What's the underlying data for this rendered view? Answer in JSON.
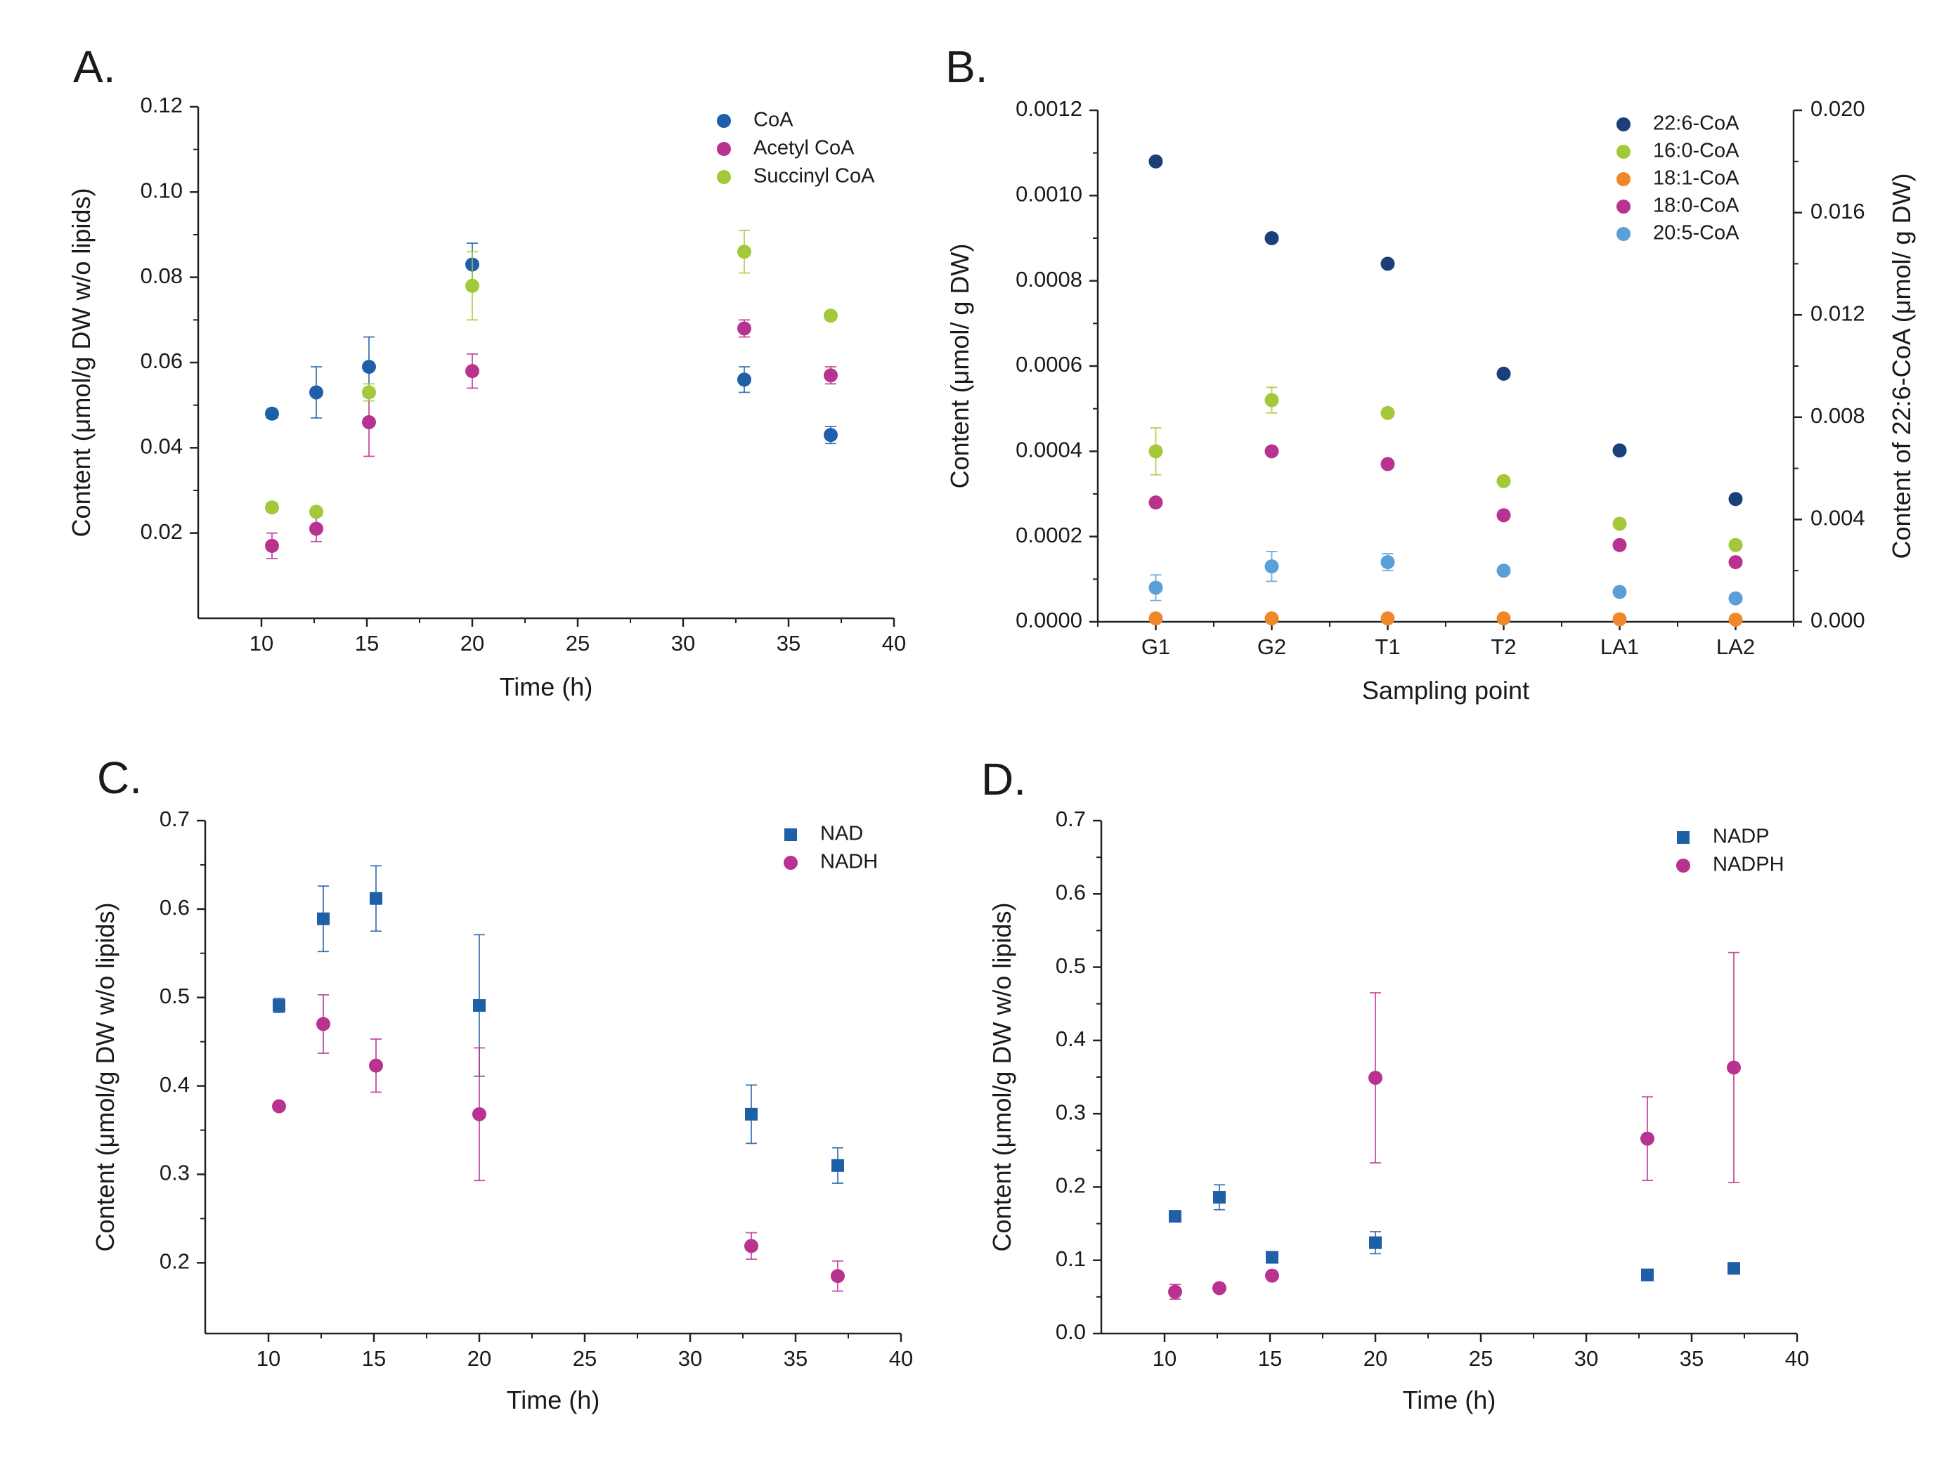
{
  "chart_data": [
    {
      "panel": "A.",
      "type": "scatter",
      "xlabel": "Time (h)",
      "ylabel": "Content (μmol/g DW w/o lipids)",
      "xlim": [
        7,
        40
      ],
      "ylim": [
        0,
        0.12
      ],
      "xticks": [
        10,
        15,
        20,
        25,
        30,
        35,
        40
      ],
      "yticks": [
        0.02,
        0.04,
        0.06,
        0.08,
        0.1,
        0.12
      ],
      "ytick_labels": [
        "0.02",
        "0.04",
        "0.06",
        "0.08",
        "0.10",
        "0.12"
      ],
      "legend_position": "top-right",
      "series": [
        {
          "name": "CoA",
          "color": "#1f5fa8",
          "marker": "circle",
          "x": [
            10.5,
            12.6,
            15.1,
            20.0,
            32.9,
            37.0
          ],
          "y": [
            0.048,
            0.053,
            0.059,
            0.083,
            0.056,
            0.043
          ],
          "err": [
            0.001,
            0.006,
            0.007,
            0.005,
            0.003,
            0.002
          ]
        },
        {
          "name": "Acetyl CoA",
          "color": "#b8338f",
          "marker": "circle",
          "x": [
            10.5,
            12.6,
            15.1,
            20.0,
            32.9,
            37.0
          ],
          "y": [
            0.017,
            0.021,
            0.046,
            0.058,
            0.068,
            0.057
          ],
          "err": [
            0.003,
            0.003,
            0.008,
            0.004,
            0.002,
            0.002
          ]
        },
        {
          "name": "Succinyl CoA",
          "color": "#a3c93a",
          "marker": "circle",
          "x": [
            10.5,
            12.6,
            15.1,
            20.0,
            32.9,
            37.0
          ],
          "y": [
            0.026,
            0.025,
            0.053,
            0.078,
            0.086,
            0.071
          ],
          "err": [
            0.001,
            0.001,
            0.002,
            0.008,
            0.005,
            0.001
          ]
        }
      ]
    },
    {
      "panel": "B.",
      "type": "scatter",
      "xlabel": "Sampling point",
      "ylabel": "Content (μmol/ g DW)",
      "y2label": "Content of 22:6-CoA (μmol/ g DW)",
      "categories": [
        "G1",
        "G2",
        "T1",
        "T2",
        "LA1",
        "LA2"
      ],
      "ylim": [
        0,
        0.0012
      ],
      "yticks": [
        0,
        0.0002,
        0.0004,
        0.0006,
        0.0008,
        0.001,
        0.0012
      ],
      "ytick_labels": [
        "0.0000",
        "0.0002",
        "0.0004",
        "0.0006",
        "0.0008",
        "0.0010",
        "0.0012"
      ],
      "y2lim": [
        0,
        0.02
      ],
      "y2ticks": [
        0,
        0.004,
        0.008,
        0.012,
        0.016,
        0.02
      ],
      "y2tick_labels": [
        "0.000",
        "0.004",
        "0.008",
        "0.012",
        "0.016",
        "0.020"
      ],
      "legend_position": "top-right",
      "series": [
        {
          "name": "22:6-CoA",
          "color": "#1a3f7a",
          "marker": "circle",
          "axis": "right",
          "values": [
            0.018,
            0.015,
            0.014,
            0.0097,
            0.0067,
            0.0048
          ],
          "err": [
            0,
            0,
            0,
            0,
            0,
            0
          ]
        },
        {
          "name": "16:0-CoA",
          "color": "#a3c93a",
          "marker": "circle",
          "axis": "left",
          "values": [
            0.0004,
            0.00052,
            0.00049,
            0.00033,
            0.00023,
            0.00018
          ],
          "err": [
            5.5e-05,
            3e-05,
            8e-06,
            5e-06,
            5e-06,
            5e-06
          ]
        },
        {
          "name": "18:1-CoA",
          "color": "#f0882a",
          "marker": "circle",
          "axis": "left",
          "values": [
            8e-06,
            8e-06,
            8e-06,
            8e-06,
            6e-06,
            5e-06
          ],
          "err": [
            0,
            0,
            0,
            0,
            0,
            0
          ]
        },
        {
          "name": "18:0-CoA",
          "color": "#b8338f",
          "marker": "circle",
          "axis": "left",
          "values": [
            0.00028,
            0.0004,
            0.00037,
            0.00025,
            0.00018,
            0.00014
          ],
          "err": [
            0,
            8e-06,
            5e-06,
            5e-06,
            5e-06,
            5e-06
          ]
        },
        {
          "name": "20:5-CoA",
          "color": "#5a9fd8",
          "marker": "circle",
          "axis": "left",
          "values": [
            8e-05,
            0.00013,
            0.00014,
            0.00012,
            7e-05,
            5.5e-05
          ],
          "err": [
            3e-05,
            3.5e-05,
            2e-05,
            5e-06,
            5e-06,
            5e-06
          ]
        }
      ]
    },
    {
      "panel": "C.",
      "type": "scatter",
      "xlabel": "Time (h)",
      "ylabel": "Content (μmol/g DW w/o lipids)",
      "xlim": [
        7,
        40
      ],
      "ylim": [
        0.12,
        0.7
      ],
      "xticks": [
        10,
        15,
        20,
        25,
        30,
        35,
        40
      ],
      "yticks": [
        0.2,
        0.3,
        0.4,
        0.5,
        0.6,
        0.7
      ],
      "ytick_labels": [
        "0.2",
        "0.3",
        "0.4",
        "0.5",
        "0.6",
        "0.7"
      ],
      "legend_position": "top-right",
      "series": [
        {
          "name": "NAD",
          "color": "#1f5fa8",
          "marker": "square",
          "x": [
            10.5,
            12.6,
            15.1,
            20.0,
            32.9,
            37.0
          ],
          "y": [
            0.491,
            0.589,
            0.612,
            0.491,
            0.368,
            0.31
          ],
          "err": [
            0.008,
            0.037,
            0.037,
            0.08,
            0.033,
            0.02
          ]
        },
        {
          "name": "NADH",
          "color": "#b8338f",
          "marker": "circle",
          "x": [
            10.5,
            12.6,
            15.1,
            20.0,
            32.9,
            37.0
          ],
          "y": [
            0.377,
            0.47,
            0.423,
            0.368,
            0.219,
            0.185
          ],
          "err": [
            0.004,
            0.033,
            0.03,
            0.075,
            0.015,
            0.017
          ]
        }
      ]
    },
    {
      "panel": "D.",
      "type": "scatter",
      "xlabel": "Time (h)",
      "ylabel": "Content (μmol/g DW w/o lipids)",
      "xlim": [
        7,
        40
      ],
      "ylim": [
        0,
        0.7
      ],
      "xticks": [
        10,
        15,
        20,
        25,
        30,
        35,
        40
      ],
      "yticks": [
        0,
        0.1,
        0.2,
        0.3,
        0.4,
        0.5,
        0.6,
        0.7
      ],
      "ytick_labels": [
        "0.0",
        "0.1",
        "0.2",
        "0.3",
        "0.4",
        "0.5",
        "0.6",
        "0.7"
      ],
      "legend_position": "top-right",
      "series": [
        {
          "name": "NADP",
          "color": "#1f5fa8",
          "marker": "square",
          "x": [
            10.5,
            12.6,
            15.1,
            20.0,
            32.9,
            37.0
          ],
          "y": [
            0.16,
            0.186,
            0.104,
            0.124,
            0.08,
            0.089
          ],
          "err": [
            0.004,
            0.017,
            0.004,
            0.015,
            0.004,
            0.007
          ]
        },
        {
          "name": "NADPH",
          "color": "#b8338f",
          "marker": "circle",
          "x": [
            10.5,
            12.6,
            15.1,
            20.0,
            32.9,
            37.0
          ],
          "y": [
            0.057,
            0.062,
            0.079,
            0.349,
            0.266,
            0.363
          ],
          "err": [
            0.01,
            0.004,
            0.004,
            0.116,
            0.057,
            0.157
          ]
        }
      ]
    }
  ]
}
